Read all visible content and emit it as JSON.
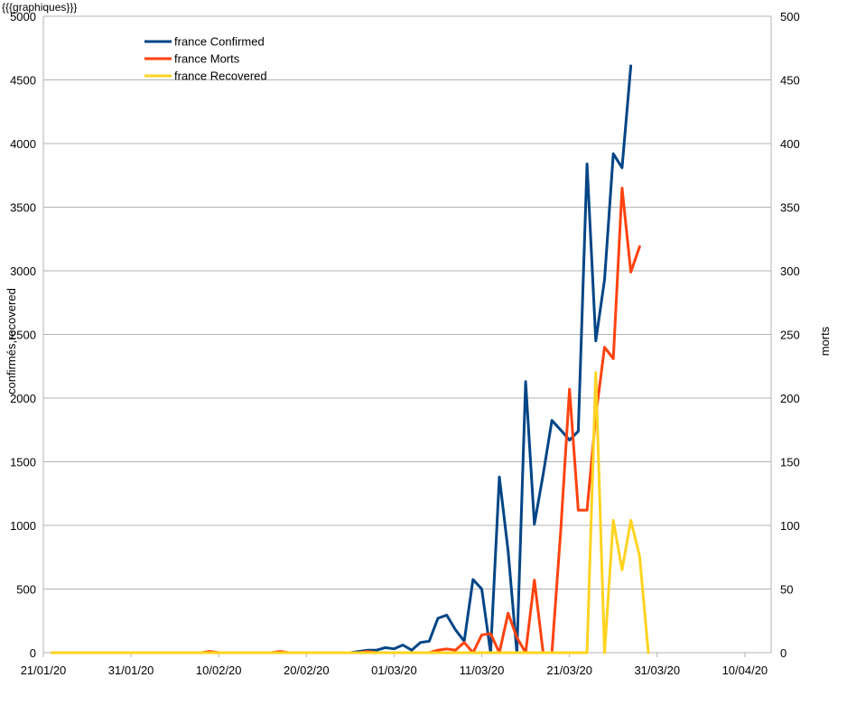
{
  "page": {
    "title": "{{{graphiques}}}"
  },
  "chart_data": {
    "type": "line",
    "title": "",
    "xlabel": "",
    "ylabel_left": "confirmés,recovered",
    "ylabel_right": "morts",
    "x_ticks": [
      "21/01/20",
      "31/01/20",
      "10/02/20",
      "20/02/20",
      "01/03/20",
      "11/03/20",
      "21/03/20",
      "31/03/20",
      "10/04/20"
    ],
    "x_range_days": [
      0,
      83
    ],
    "yleft_lim": [
      0,
      5000
    ],
    "yleft_ticks": [
      0,
      500,
      1000,
      1500,
      2000,
      2500,
      3000,
      3500,
      4000,
      4500,
      5000
    ],
    "yright_lim": [
      0,
      500
    ],
    "yright_ticks": [
      0,
      50,
      100,
      150,
      200,
      250,
      300,
      350,
      400,
      450,
      500
    ],
    "grid": "horizontal",
    "legend_position": "top-left",
    "series": [
      {
        "name": "france Confirmed",
        "axis": "left",
        "color": "#004586",
        "points": [
          [
            "22/01/20",
            0
          ],
          [
            "24/01/20",
            0
          ],
          [
            "26/01/20",
            0
          ],
          [
            "28/01/20",
            0
          ],
          [
            "30/01/20",
            0
          ],
          [
            "01/02/20",
            0
          ],
          [
            "03/02/20",
            0
          ],
          [
            "05/02/20",
            0
          ],
          [
            "07/02/20",
            0
          ],
          [
            "09/02/20",
            0
          ],
          [
            "11/02/20",
            0
          ],
          [
            "13/02/20",
            0
          ],
          [
            "15/02/20",
            0
          ],
          [
            "17/02/20",
            0
          ],
          [
            "19/02/20",
            0
          ],
          [
            "21/02/20",
            0
          ],
          [
            "23/02/20",
            0
          ],
          [
            "25/02/20",
            0
          ],
          [
            "26/02/20",
            10
          ],
          [
            "27/02/20",
            20
          ],
          [
            "28/02/20",
            20
          ],
          [
            "29/02/20",
            40
          ],
          [
            "01/03/20",
            30
          ],
          [
            "02/03/20",
            60
          ],
          [
            "03/03/20",
            20
          ],
          [
            "04/03/20",
            80
          ],
          [
            "05/03/20",
            90
          ],
          [
            "06/03/20",
            270
          ],
          [
            "07/03/20",
            295
          ],
          [
            "08/03/20",
            180
          ],
          [
            "09/03/20",
            90
          ],
          [
            "10/03/20",
            575
          ],
          [
            "11/03/20",
            500
          ],
          [
            "12/03/20",
            0
          ],
          [
            "13/03/20",
            1380
          ],
          [
            "14/03/20",
            800
          ],
          [
            "15/03/20",
            0
          ],
          [
            "16/03/20",
            2130
          ],
          [
            "17/03/20",
            1010
          ],
          [
            "18/03/20",
            1400
          ],
          [
            "19/03/20",
            1825
          ],
          [
            "20/03/20",
            1750
          ],
          [
            "21/03/20",
            1670
          ],
          [
            "22/03/20",
            1740
          ],
          [
            "23/03/20",
            3840
          ],
          [
            "24/03/20",
            2450
          ],
          [
            "25/03/20",
            2930
          ],
          [
            "26/03/20",
            3920
          ],
          [
            "27/03/20",
            3810
          ],
          [
            "28/03/20",
            4610
          ]
        ]
      },
      {
        "name": "france Morts",
        "axis": "right",
        "color": "#ff420e",
        "points": [
          [
            "22/01/20",
            0
          ],
          [
            "08/02/20",
            0
          ],
          [
            "09/02/20",
            1
          ],
          [
            "10/02/20",
            0
          ],
          [
            "16/02/20",
            0
          ],
          [
            "17/02/20",
            1
          ],
          [
            "18/02/20",
            0
          ],
          [
            "26/02/20",
            0
          ],
          [
            "27/02/20",
            1
          ],
          [
            "28/02/20",
            0
          ],
          [
            "29/02/20",
            0
          ],
          [
            "01/03/20",
            0
          ],
          [
            "02/03/20",
            0
          ],
          [
            "03/03/20",
            0
          ],
          [
            "04/03/20",
            0
          ],
          [
            "05/03/20",
            0
          ],
          [
            "06/03/20",
            2
          ],
          [
            "07/03/20",
            3
          ],
          [
            "08/03/20",
            2
          ],
          [
            "09/03/20",
            8
          ],
          [
            "10/03/20",
            0
          ],
          [
            "11/03/20",
            14
          ],
          [
            "12/03/20",
            15
          ],
          [
            "13/03/20",
            0
          ],
          [
            "14/03/20",
            31
          ],
          [
            "15/03/20",
            12
          ],
          [
            "16/03/20",
            0
          ],
          [
            "17/03/20",
            57
          ],
          [
            "18/03/20",
            0
          ],
          [
            "19/03/20",
            0
          ],
          [
            "20/03/20",
            95
          ],
          [
            "21/03/20",
            207
          ],
          [
            "22/03/20",
            112
          ],
          [
            "23/03/20",
            112
          ],
          [
            "24/03/20",
            186
          ],
          [
            "25/03/20",
            240
          ],
          [
            "26/03/20",
            231
          ],
          [
            "27/03/20",
            365
          ],
          [
            "28/03/20",
            299
          ],
          [
            "29/03/20",
            319
          ]
        ]
      },
      {
        "name": "france Recovered",
        "axis": "left",
        "color": "#ffd320",
        "points": [
          [
            "22/01/20",
            0
          ],
          [
            "20/03/20",
            0
          ],
          [
            "21/03/20",
            0
          ],
          [
            "22/03/20",
            0
          ],
          [
            "23/03/20",
            0
          ],
          [
            "24/03/20",
            2200
          ],
          [
            "25/03/20",
            0
          ],
          [
            "26/03/20",
            1040
          ],
          [
            "27/03/20",
            650
          ],
          [
            "28/03/20",
            1040
          ],
          [
            "29/03/20",
            760
          ],
          [
            "30/03/20",
            0
          ]
        ]
      }
    ]
  }
}
